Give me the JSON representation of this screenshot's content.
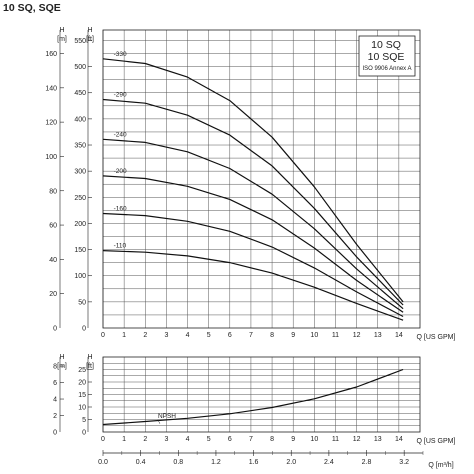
{
  "page_title": "10 SQ, SQE",
  "legend_box": {
    "line1": "10 SQ",
    "line2": "10 SQE",
    "line3": "ISO 9906 Annex A"
  },
  "top_chart": {
    "h_label": "H",
    "unit_m": "[m]",
    "unit_ft": "[ft]",
    "x_axis_label": "Q [US GPM]"
  },
  "bottom_chart": {
    "h_label": "H",
    "unit_m": "[m]",
    "unit_ft": "[ft]",
    "x_axis_label": "Q [US GPM]"
  },
  "flow_axis": {
    "label": "Q [m³/h]"
  },
  "chart_data": [
    {
      "type": "line",
      "title": "",
      "xlabel": "Q [US GPM]",
      "ylabel": "H [ft]",
      "secondary_ylabel": "H [m]",
      "xlim": [
        0,
        15
      ],
      "ylim": [
        0,
        570
      ],
      "y_m_lim": [
        0,
        173.7
      ],
      "grid": true,
      "x_ticks": [
        0,
        1,
        2,
        3,
        4,
        5,
        6,
        7,
        8,
        9,
        10,
        11,
        12,
        13,
        14
      ],
      "y_ticks_ft": [
        50,
        100,
        150,
        200,
        250,
        300,
        350,
        400,
        450,
        500,
        550
      ],
      "y_ticks_m": [
        20,
        40,
        60,
        80,
        100,
        120,
        140,
        160
      ],
      "series": [
        {
          "name": "-330",
          "x": [
            0,
            2,
            4,
            6,
            8,
            10,
            12,
            14.2
          ],
          "y": [
            515,
            506,
            480,
            435,
            365,
            270,
            160,
            50
          ]
        },
        {
          "name": "-290",
          "x": [
            0,
            2,
            4,
            6,
            8,
            10,
            12,
            14.2
          ],
          "y": [
            437,
            430,
            407,
            369,
            310,
            229,
            136,
            44
          ]
        },
        {
          "name": "-240",
          "x": [
            0,
            2,
            4,
            6,
            8,
            10,
            12,
            14.2
          ],
          "y": [
            361,
            355,
            337,
            305,
            256,
            190,
            113,
            37
          ]
        },
        {
          "name": "-200",
          "x": [
            0,
            2,
            4,
            6,
            8,
            10,
            12,
            14.2
          ],
          "y": [
            291,
            286,
            271,
            246,
            207,
            153,
            91,
            30
          ]
        },
        {
          "name": "-160",
          "x": [
            0,
            2,
            4,
            6,
            8,
            10,
            12,
            14.2
          ],
          "y": [
            219,
            215,
            204,
            185,
            155,
            115,
            69,
            22
          ]
        },
        {
          "name": "-110",
          "x": [
            0,
            2,
            4,
            6,
            8,
            10,
            12,
            14.2
          ],
          "y": [
            148,
            145,
            138,
            125,
            105,
            78,
            47,
            15
          ]
        }
      ]
    },
    {
      "type": "line",
      "title": "",
      "xlabel": "Q [US GPM]",
      "ylabel": "H [ft]",
      "secondary_ylabel": "H [m]",
      "xlim": [
        0,
        15
      ],
      "ylim": [
        0,
        30
      ],
      "y_m_lim": [
        0,
        9.1
      ],
      "grid": true,
      "x_ticks": [
        0,
        1,
        2,
        3,
        4,
        5,
        6,
        7,
        8,
        9,
        10,
        11,
        12,
        13,
        14
      ],
      "y_ticks_ft": [
        5,
        10,
        15,
        20,
        25
      ],
      "y_ticks_m": [
        2,
        4,
        6,
        8
      ],
      "series": [
        {
          "name": "NPSH",
          "x": [
            0,
            2,
            4,
            6,
            8,
            10,
            12,
            14.2
          ],
          "y": [
            3,
            4.2,
            5.5,
            7.3,
            9.8,
            13.3,
            18,
            25
          ]
        }
      ]
    },
    {
      "type": "axis",
      "xlabel": "Q [m³/h]",
      "xlim": [
        0,
        3.4
      ],
      "x_ticks": [
        "0.0",
        "0.4",
        "0.8",
        "1.2",
        "1.6",
        "2.0",
        "2.4",
        "2.8",
        "3.2"
      ]
    }
  ]
}
